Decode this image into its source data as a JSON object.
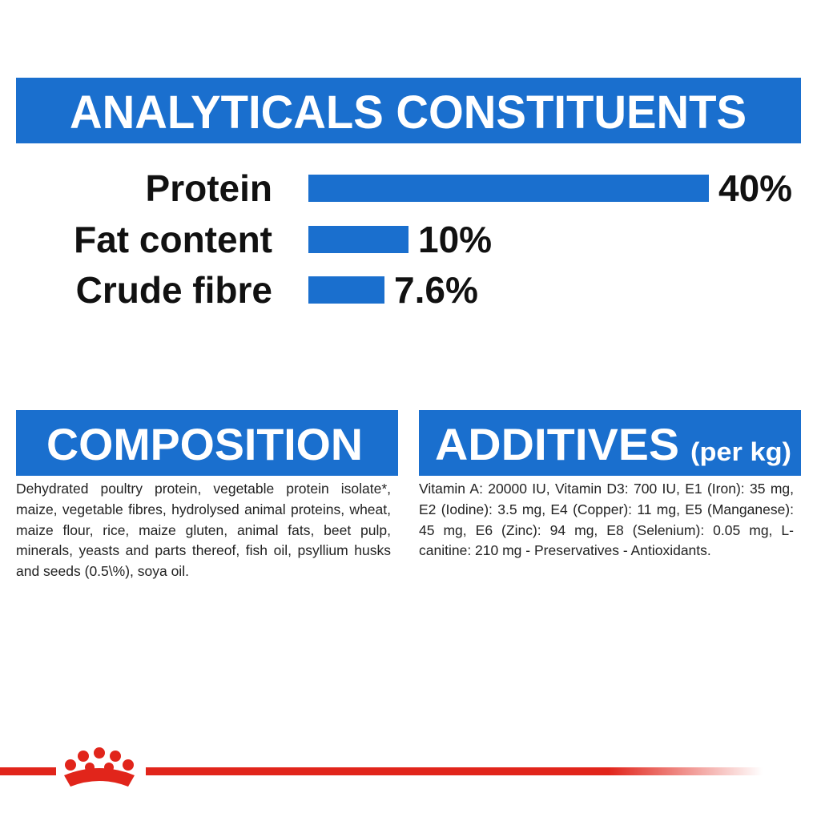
{
  "header": {
    "title": "ANALYTICALS CONSTITUENTS"
  },
  "chart_data": {
    "type": "bar",
    "categories": [
      "Protein",
      "Fat content",
      "Crude fibre"
    ],
    "values": [
      40,
      10,
      7.6
    ],
    "value_labels": [
      "40%",
      "10%",
      "7.6%"
    ],
    "color": "#1a6fce"
  },
  "composition": {
    "title": "COMPOSITION",
    "text": "Dehydrated poultry protein, vegetable protein isolate*, maize, vegetable fibres, hydrolysed animal proteins, wheat, maize flour, rice, maize gluten, animal fats, beet pulp, minerals, yeasts and parts thereof, fish oil, psyllium husks and seeds (0.5\\%), soya oil."
  },
  "additives": {
    "title": "ADDITIVES",
    "subtitle": "(per kg)",
    "text": "Vitamin A: 20000 IU, Vitamin D3: 700 IU, E1 (Iron): 35 mg, E2 (Iodine): 3.5 mg, E4 (Copper): 11 mg, E5 (Manganese): 45 mg, E6 (Zinc): 94 mg, E8 (Selenium): 0.05 mg, L-canitine: 210 mg - Preservatives - Antioxidants."
  }
}
